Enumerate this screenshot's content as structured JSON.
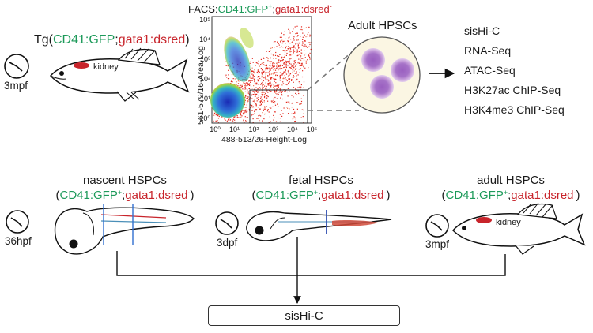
{
  "top": {
    "tg": {
      "prefix": "Tg(",
      "gfp": "CD41:GFP",
      "sep": ";",
      "dsred": "gata1:dsred",
      "suffix": ")"
    },
    "age": "3mpf",
    "kidney": "kidney",
    "facs": {
      "title_prefix": "FACS:",
      "title_gfp": "CD41:GFP",
      "title_gfp_sup": "+",
      "title_sep": ";",
      "title_dsred": "gata1:dsred",
      "title_dsred_sup": "-",
      "ylabel": "561-579/16-Area-Log",
      "xlabel": "488-513/26-Height-Log"
    },
    "adult_hpscs": "Adult HPSCs",
    "methods": [
      "sisHi-C",
      "RNA-Seq",
      "ATAC-Seq",
      "H3K27ac ChIP-Seq",
      "H3K4me3 ChIP-Seq"
    ]
  },
  "stages": [
    {
      "name": "nascent HSPCs",
      "gfp": "CD41:GFP",
      "gfp_sup": "+",
      "sep": ";",
      "dsred": "gata1:dsred",
      "dsred_sup": "-",
      "age": "36hpf"
    },
    {
      "name": "fetal HSPCs",
      "gfp": "CD41:GFP",
      "gfp_sup": "+",
      "sep": ";",
      "dsred": "gata1:dsred",
      "dsred_sup": "-",
      "age": "3dpf"
    },
    {
      "name": "adult HSPCs",
      "gfp": "CD41:GFP",
      "gfp_sup": "+",
      "sep": ";",
      "dsred": "gata1:dsred",
      "dsred_sup": "-",
      "age": "3mpf",
      "kidney": "kidney"
    }
  ],
  "bottom_box": "sisHi-C",
  "colors": {
    "gfp": "#1d9a5a",
    "dsred": "#c8242b",
    "cell": "#b587cf",
    "nucleus": "#8a4fb0",
    "dish": "#fbf6e3"
  }
}
